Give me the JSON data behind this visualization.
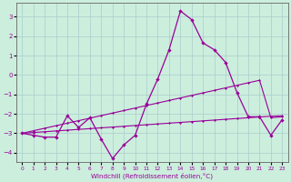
{
  "xlabel": "Windchill (Refroidissement éolien,°C)",
  "bg_color": "#cceedd",
  "grid_color": "#aacccc",
  "line_color": "#990099",
  "x": [
    0,
    1,
    2,
    3,
    4,
    5,
    6,
    7,
    8,
    9,
    10,
    11,
    12,
    13,
    14,
    15,
    16,
    17,
    18,
    19,
    20,
    21,
    22,
    23
  ],
  "y_main": [
    -3.0,
    -3.1,
    -3.2,
    -3.2,
    -2.1,
    -2.7,
    -2.2,
    -3.3,
    -4.3,
    -3.6,
    -3.1,
    -1.5,
    -0.2,
    1.3,
    3.3,
    2.85,
    1.65,
    1.3,
    0.65,
    -0.9,
    -2.15,
    -2.15,
    -3.1,
    -2.3
  ],
  "y_diag1": [
    -3.0,
    -2.87,
    -2.74,
    -2.61,
    -2.48,
    -2.35,
    -2.22,
    -2.09,
    -1.96,
    -1.83,
    -1.7,
    -1.57,
    -1.44,
    -1.31,
    -1.18,
    -1.05,
    -0.92,
    -0.79,
    -0.66,
    -0.53,
    -0.4,
    -0.27,
    -2.2,
    -2.15
  ],
  "y_diag2": [
    -3.0,
    -2.96,
    -2.92,
    -2.88,
    -2.84,
    -2.8,
    -2.76,
    -2.72,
    -2.68,
    -2.64,
    -2.6,
    -2.56,
    -2.52,
    -2.48,
    -2.44,
    -2.4,
    -2.36,
    -2.32,
    -2.28,
    -2.24,
    -2.2,
    -2.16,
    -2.12,
    -2.1
  ],
  "ylim": [
    -4.5,
    3.7
  ],
  "xlim": [
    -0.5,
    23.5
  ],
  "yticks": [
    -4,
    -3,
    -2,
    -1,
    0,
    1,
    2,
    3
  ]
}
